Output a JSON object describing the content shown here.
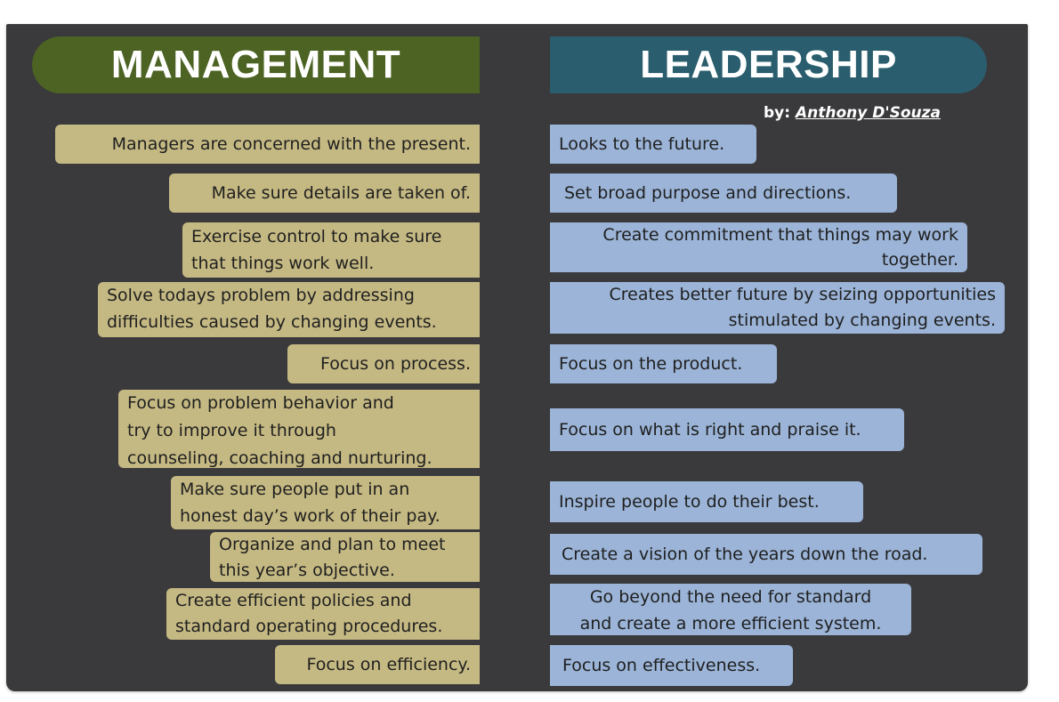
{
  "headers": {
    "management": "MANAGEMENT",
    "leadership": "LEADERSHIP"
  },
  "byline": {
    "prefix": "by:",
    "author": "Anthony D'Souza"
  },
  "management_items": [
    "Managers are concerned with the present.",
    "Make sure details are taken of.",
    "Exercise control to make sure\nthat things work well.",
    "Solve todays problem by addressing\ndifficulties caused by changing events.",
    "Focus on process.",
    "Focus on problem behavior and\ntry to improve it through\ncounseling, coaching and nurturing.",
    "Make sure people put in an\nhonest day’s work of their pay.",
    "Organize and plan to meet\nthis year’s objective.",
    "Create efficient policies and\nstandard operating procedures.",
    "Focus on efficiency."
  ],
  "leadership_items": [
    "Looks to the future.",
    "Set broad purpose and directions.",
    "Create commitment that things may work\ntogether.",
    "Creates better future by seizing opportunities\nstimulated by changing events.",
    "Focus on the product.",
    "Focus on what is right and praise it.",
    "Inspire people to do their best.",
    "Create a vision of the years down the road.",
    "Go beyond the need for standard\nand create a more efficient system.",
    "Focus on effectiveness."
  ],
  "colors": {
    "background": "#3a393b",
    "management_header": "#4c6323",
    "leadership_header": "#2a5d6d",
    "management_box": "#c5b983",
    "leadership_box": "#9bb4d7"
  }
}
